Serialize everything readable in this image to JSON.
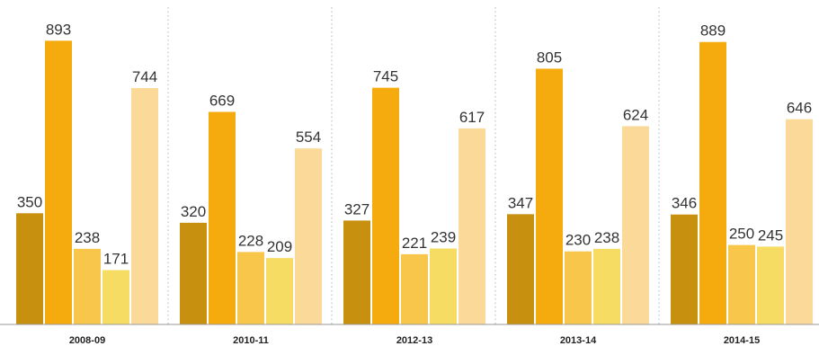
{
  "chart_data": {
    "type": "bar",
    "title": "",
    "xlabel": "",
    "ylabel": "",
    "categories": [
      "2008-09",
      "2010-11",
      "2012-13",
      "2013-14",
      "2014-15"
    ],
    "series": [
      {
        "color": "#c8900f",
        "values": [
          350,
          320,
          327,
          347,
          346
        ]
      },
      {
        "color": "#f5ab0e",
        "values": [
          893,
          669,
          745,
          805,
          889
        ]
      },
      {
        "color": "#f7c64a",
        "values": [
          238,
          228,
          221,
          230,
          250
        ]
      },
      {
        "color": "#f7dc64",
        "values": [
          171,
          209,
          239,
          238,
          245
        ]
      },
      {
        "color": "#fad999",
        "values": [
          744,
          554,
          617,
          624,
          646
        ]
      }
    ],
    "ylim": [
      0,
      1000
    ],
    "grid": false,
    "legend": "none",
    "group_separators": "dotted"
  }
}
